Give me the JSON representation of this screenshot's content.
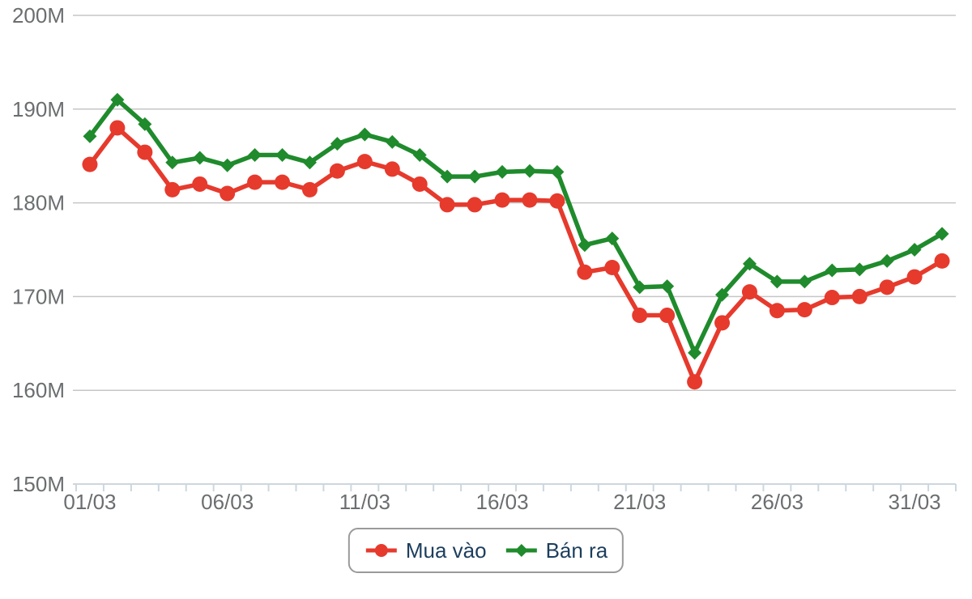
{
  "chart_data": {
    "type": "line",
    "title": "",
    "x_categories": [
      "01/03",
      "02/03",
      "03/03",
      "04/03",
      "05/03",
      "06/03",
      "07/03",
      "08/03",
      "09/03",
      "10/03",
      "11/03",
      "12/03",
      "13/03",
      "14/03",
      "15/03",
      "16/03",
      "17/03",
      "18/03",
      "19/03",
      "20/03",
      "21/03",
      "22/03",
      "23/03",
      "24/03",
      "25/03",
      "26/03",
      "27/03",
      "28/03",
      "29/03",
      "30/03",
      "31/03",
      "01/04"
    ],
    "x_tick_labels_shown": [
      "01/03",
      "06/03",
      "11/03",
      "16/03",
      "21/03",
      "26/03",
      "31/03"
    ],
    "y_ticks": [
      "200M",
      "190M",
      "180M",
      "170M",
      "160M",
      "150M"
    ],
    "ylim": [
      150,
      200
    ],
    "y_unit": "M",
    "grid": "horizontal-only",
    "legend_position": "bottom-center",
    "series": [
      {
        "name": "Mua vào",
        "color": "#e63a2d",
        "marker": "circle",
        "values": [
          184.1,
          188.0,
          185.4,
          181.4,
          182.0,
          181.0,
          182.2,
          182.2,
          181.4,
          183.4,
          184.4,
          183.6,
          182.0,
          179.8,
          179.8,
          180.3,
          180.3,
          180.2,
          172.6,
          173.1,
          168.0,
          168.0,
          160.9,
          167.2,
          170.5,
          168.5,
          168.6,
          169.9,
          170.0,
          171.0,
          172.1,
          173.8
        ]
      },
      {
        "name": "Bán ra",
        "color": "#1f8b2c",
        "marker": "diamond",
        "values": [
          187.1,
          191.0,
          188.4,
          184.3,
          184.8,
          184.0,
          185.1,
          185.1,
          184.3,
          186.3,
          187.3,
          186.5,
          185.1,
          182.8,
          182.8,
          183.3,
          183.4,
          183.3,
          175.5,
          176.2,
          171.0,
          171.1,
          164.0,
          170.2,
          173.5,
          171.6,
          171.6,
          172.8,
          172.9,
          173.8,
          175.0,
          176.7
        ]
      }
    ],
    "appearance": {
      "grid_color": "#c6c6c6",
      "axis_line_color": "#ccd7de",
      "tick_label_color": "#6b6e70",
      "legend_text_color": "#1c3e5d",
      "legend_border_color": "#9a9a9a",
      "background": "#ffffff"
    }
  }
}
